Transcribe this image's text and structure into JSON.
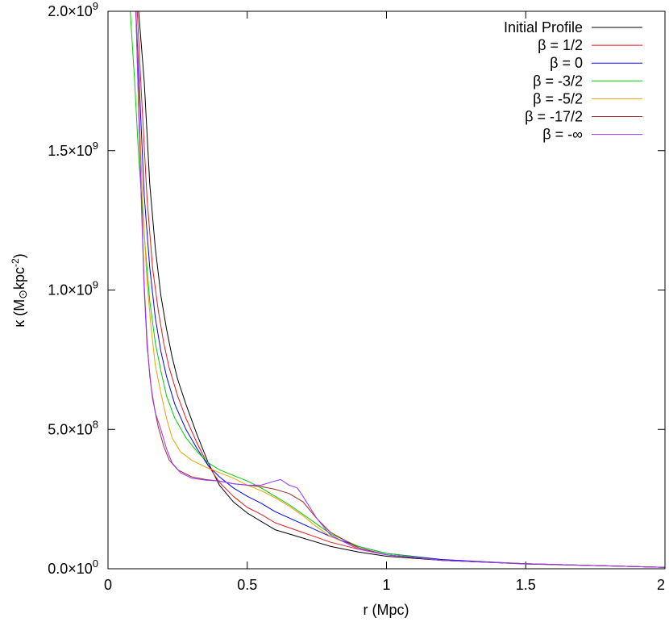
{
  "chart_data": {
    "type": "line",
    "xlabel": "r (Mpc)",
    "ylabel": "κ (M⊙kpc⁻²)",
    "ylabel_parts": {
      "prefix": "κ (M",
      "sun": "⊙",
      "unit": "kpc",
      "exp": "-2",
      "suffix": ")"
    },
    "xlim": [
      0,
      2
    ],
    "ylim": [
      0,
      2000000000
    ],
    "x_ticks": [
      {
        "value": 0,
        "label": "0"
      },
      {
        "value": 0.5,
        "label": "0.5"
      },
      {
        "value": 1,
        "label": "1"
      },
      {
        "value": 1.5,
        "label": "1.5"
      },
      {
        "value": 2,
        "label": "2"
      }
    ],
    "y_ticks": [
      {
        "value": 0,
        "mant": "0.0×10",
        "exp": "0"
      },
      {
        "value": 500000000,
        "mant": "5.0×10",
        "exp": "8"
      },
      {
        "value": 1000000000,
        "mant": "1.0×10",
        "exp": "9"
      },
      {
        "value": 1500000000,
        "mant": "1.5×10",
        "exp": "9"
      },
      {
        "value": 2000000000,
        "mant": "2.0×10",
        "exp": "9"
      }
    ],
    "legend_position": "top-right",
    "series": [
      {
        "name": "Initial Profile",
        "color": "#000000",
        "points": [
          [
            0.11,
            2000000000
          ],
          [
            0.13,
            1750000000
          ],
          [
            0.15,
            1380000000
          ],
          [
            0.17,
            1150000000
          ],
          [
            0.19,
            980000000
          ],
          [
            0.21,
            860000000
          ],
          [
            0.23,
            760000000
          ],
          [
            0.25,
            680000000
          ],
          [
            0.28,
            590000000
          ],
          [
            0.32,
            480000000
          ],
          [
            0.36,
            380000000
          ],
          [
            0.4,
            300000000
          ],
          [
            0.45,
            240000000
          ],
          [
            0.5,
            200000000
          ],
          [
            0.55,
            170000000
          ],
          [
            0.6,
            140000000
          ],
          [
            0.7,
            110000000
          ],
          [
            0.8,
            80000000
          ],
          [
            0.9,
            60000000
          ],
          [
            1.0,
            45000000
          ],
          [
            1.2,
            30000000
          ],
          [
            1.5,
            17000000
          ],
          [
            1.8,
            10000000
          ],
          [
            2.0,
            5000000
          ]
        ]
      },
      {
        "name": "β = 1/2",
        "color": "#e41a1c",
        "points": [
          [
            0.105,
            2000000000
          ],
          [
            0.12,
            1700000000
          ],
          [
            0.14,
            1330000000
          ],
          [
            0.16,
            1080000000
          ],
          [
            0.18,
            930000000
          ],
          [
            0.2,
            810000000
          ],
          [
            0.22,
            720000000
          ],
          [
            0.25,
            620000000
          ],
          [
            0.28,
            540000000
          ],
          [
            0.32,
            450000000
          ],
          [
            0.36,
            370000000
          ],
          [
            0.4,
            310000000
          ],
          [
            0.45,
            260000000
          ],
          [
            0.5,
            220000000
          ],
          [
            0.55,
            195000000
          ],
          [
            0.6,
            165000000
          ],
          [
            0.7,
            130000000
          ],
          [
            0.8,
            95000000
          ],
          [
            0.9,
            70000000
          ],
          [
            1.0,
            50000000
          ],
          [
            1.2,
            30000000
          ],
          [
            1.5,
            18000000
          ],
          [
            1.8,
            10000000
          ],
          [
            2.0,
            5000000
          ]
        ]
      },
      {
        "name": "β = 0",
        "color": "#0000ff",
        "points": [
          [
            0.1,
            2000000000
          ],
          [
            0.115,
            1680000000
          ],
          [
            0.13,
            1340000000
          ],
          [
            0.15,
            1080000000
          ],
          [
            0.17,
            900000000
          ],
          [
            0.19,
            780000000
          ],
          [
            0.21,
            690000000
          ],
          [
            0.24,
            590000000
          ],
          [
            0.28,
            500000000
          ],
          [
            0.32,
            430000000
          ],
          [
            0.36,
            370000000
          ],
          [
            0.4,
            330000000
          ],
          [
            0.45,
            290000000
          ],
          [
            0.5,
            260000000
          ],
          [
            0.55,
            235000000
          ],
          [
            0.6,
            205000000
          ],
          [
            0.7,
            160000000
          ],
          [
            0.8,
            115000000
          ],
          [
            0.9,
            80000000
          ],
          [
            1.0,
            55000000
          ],
          [
            1.2,
            33000000
          ],
          [
            1.5,
            18000000
          ],
          [
            1.8,
            10000000
          ],
          [
            2.0,
            5000000
          ]
        ]
      },
      {
        "name": "β = -3/2",
        "color": "#00cc00",
        "points": [
          [
            0.08,
            2000000000
          ],
          [
            0.095,
            1760000000
          ],
          [
            0.11,
            1480000000
          ],
          [
            0.13,
            1200000000
          ],
          [
            0.15,
            960000000
          ],
          [
            0.17,
            810000000
          ],
          [
            0.19,
            710000000
          ],
          [
            0.21,
            620000000
          ],
          [
            0.24,
            540000000
          ],
          [
            0.28,
            470000000
          ],
          [
            0.32,
            420000000
          ],
          [
            0.36,
            380000000
          ],
          [
            0.4,
            355000000
          ],
          [
            0.45,
            335000000
          ],
          [
            0.5,
            315000000
          ],
          [
            0.55,
            290000000
          ],
          [
            0.6,
            260000000
          ],
          [
            0.65,
            230000000
          ],
          [
            0.7,
            195000000
          ],
          [
            0.75,
            160000000
          ],
          [
            0.8,
            125000000
          ],
          [
            0.9,
            80000000
          ],
          [
            1.0,
            55000000
          ],
          [
            1.2,
            30000000
          ],
          [
            1.5,
            18000000
          ],
          [
            1.8,
            10000000
          ],
          [
            2.0,
            5000000
          ]
        ]
      },
      {
        "name": "β = -5/2",
        "color": "#f0a000",
        "points": [
          [
            0.1,
            2000000000
          ],
          [
            0.112,
            1650000000
          ],
          [
            0.125,
            1300000000
          ],
          [
            0.14,
            1030000000
          ],
          [
            0.155,
            860000000
          ],
          [
            0.17,
            730000000
          ],
          [
            0.19,
            630000000
          ],
          [
            0.21,
            540000000
          ],
          [
            0.23,
            470000000
          ],
          [
            0.26,
            420000000
          ],
          [
            0.3,
            390000000
          ],
          [
            0.35,
            365000000
          ],
          [
            0.4,
            345000000
          ],
          [
            0.45,
            325000000
          ],
          [
            0.5,
            300000000
          ],
          [
            0.55,
            280000000
          ],
          [
            0.6,
            255000000
          ],
          [
            0.65,
            225000000
          ],
          [
            0.7,
            190000000
          ],
          [
            0.75,
            150000000
          ],
          [
            0.8,
            115000000
          ],
          [
            0.9,
            75000000
          ],
          [
            1.0,
            50000000
          ],
          [
            1.2,
            30000000
          ],
          [
            1.5,
            18000000
          ],
          [
            1.8,
            10000000
          ],
          [
            2.0,
            5000000
          ]
        ]
      },
      {
        "name": "β = -17/2",
        "color": "#a52a2a",
        "points": [
          [
            0.1,
            2000000000
          ],
          [
            0.11,
            1650000000
          ],
          [
            0.12,
            1320000000
          ],
          [
            0.13,
            1020000000
          ],
          [
            0.14,
            820000000
          ],
          [
            0.15,
            690000000
          ],
          [
            0.16,
            610000000
          ],
          [
            0.18,
            510000000
          ],
          [
            0.2,
            440000000
          ],
          [
            0.22,
            390000000
          ],
          [
            0.25,
            355000000
          ],
          [
            0.3,
            330000000
          ],
          [
            0.35,
            320000000
          ],
          [
            0.4,
            315000000
          ],
          [
            0.45,
            305000000
          ],
          [
            0.5,
            300000000
          ],
          [
            0.55,
            295000000
          ],
          [
            0.6,
            285000000
          ],
          [
            0.65,
            270000000
          ],
          [
            0.7,
            240000000
          ],
          [
            0.75,
            180000000
          ],
          [
            0.8,
            130000000
          ],
          [
            0.9,
            75000000
          ],
          [
            1.0,
            50000000
          ],
          [
            1.2,
            30000000
          ],
          [
            1.5,
            18000000
          ],
          [
            1.8,
            10000000
          ],
          [
            2.0,
            5000000
          ]
        ]
      },
      {
        "name": "β = -∞",
        "color": "#9933ff",
        "points": [
          [
            0.1,
            2000000000
          ],
          [
            0.11,
            1650000000
          ],
          [
            0.12,
            1300000000
          ],
          [
            0.13,
            1000000000
          ],
          [
            0.14,
            800000000
          ],
          [
            0.155,
            650000000
          ],
          [
            0.17,
            560000000
          ],
          [
            0.19,
            500000000
          ],
          [
            0.21,
            430000000
          ],
          [
            0.23,
            380000000
          ],
          [
            0.26,
            345000000
          ],
          [
            0.3,
            325000000
          ],
          [
            0.35,
            318000000
          ],
          [
            0.4,
            315000000
          ],
          [
            0.45,
            305000000
          ],
          [
            0.5,
            300000000
          ],
          [
            0.55,
            300000000
          ],
          [
            0.6,
            315000000
          ],
          [
            0.62,
            320000000
          ],
          [
            0.65,
            300000000
          ],
          [
            0.68,
            290000000
          ],
          [
            0.7,
            260000000
          ],
          [
            0.75,
            180000000
          ],
          [
            0.8,
            120000000
          ],
          [
            0.9,
            70000000
          ],
          [
            1.0,
            50000000
          ],
          [
            1.2,
            30000000
          ],
          [
            1.5,
            18000000
          ],
          [
            1.8,
            10000000
          ],
          [
            2.0,
            5000000
          ]
        ]
      }
    ]
  }
}
